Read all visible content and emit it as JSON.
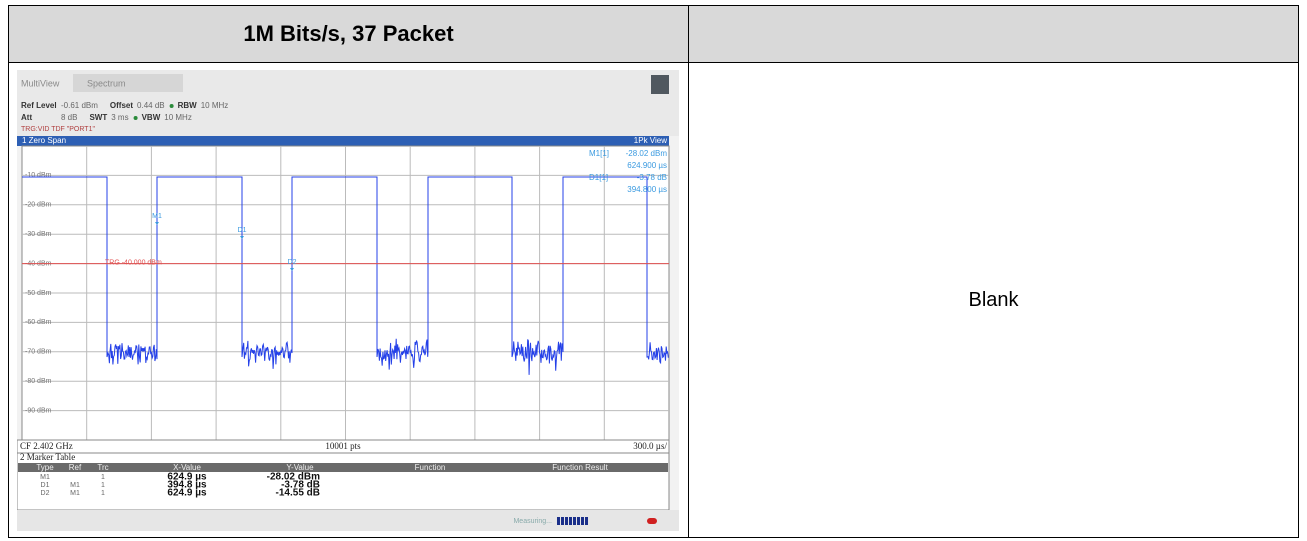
{
  "header": {
    "title": "1M Bits/s, 37 Packet"
  },
  "right_cell": "Blank",
  "screenshot": {
    "tabs": [
      "MultiView",
      "Spectrum"
    ],
    "settings_line1": [
      {
        "name": "Ref Level",
        "value": "-0.61 dBm"
      },
      {
        "name": "Offset",
        "value": "0.44 dB"
      },
      {
        "name": "RBW",
        "value": "10 MHz"
      }
    ],
    "settings_line2": [
      {
        "name": "Att",
        "value": "8 dB"
      },
      {
        "name": "SWT",
        "value": "3 ms"
      },
      {
        "name": "VBW",
        "value": "10 MHz"
      }
    ],
    "trigger": "TRG:VID TDF \"PORT1\"",
    "window_title": "1 Zero Span",
    "view": "1Pk View",
    "y_labels": [
      "-10 dBm",
      "-20 dBm",
      "-30 dBm",
      "-40 dBm",
      "-50 dBm",
      "-60 dBm",
      "-70 dBm",
      "-80 dBm",
      "-90 dBm"
    ],
    "trigger_line": "TRG -40.000 dBm",
    "marker_flags": [
      "M1",
      "D1",
      "D2"
    ],
    "marker_readout": [
      {
        "label": "M1[1]",
        "value": "-28.02 dBm",
        "position": "624.900 µs"
      },
      {
        "label": "D1[1]",
        "value": "-3.78 dB",
        "position": "394.800 µs"
      }
    ],
    "footer": {
      "left": "CF 2.402 GHz",
      "center": "10001 pts",
      "right": "300.0 µs/"
    },
    "marker_table": {
      "title": "2 Marker Table",
      "columns": [
        "Type",
        "Ref",
        "Trc",
        "X-Value",
        "Y-Value",
        "Function",
        "Function Result"
      ],
      "rows": [
        {
          "type": "M1",
          "trc": "1",
          "x": "624.9 µs",
          "y": "-28.02 dBm"
        },
        {
          "type": "D1",
          "ref": "M1",
          "trc": "1",
          "x": "394.8 µs",
          "y": "-3.78 dB"
        },
        {
          "type": "D2",
          "ref": "M1",
          "trc": "1",
          "x": "624.9 µs",
          "y": "-14.55 dB"
        }
      ]
    },
    "status": "Measuring..."
  }
}
